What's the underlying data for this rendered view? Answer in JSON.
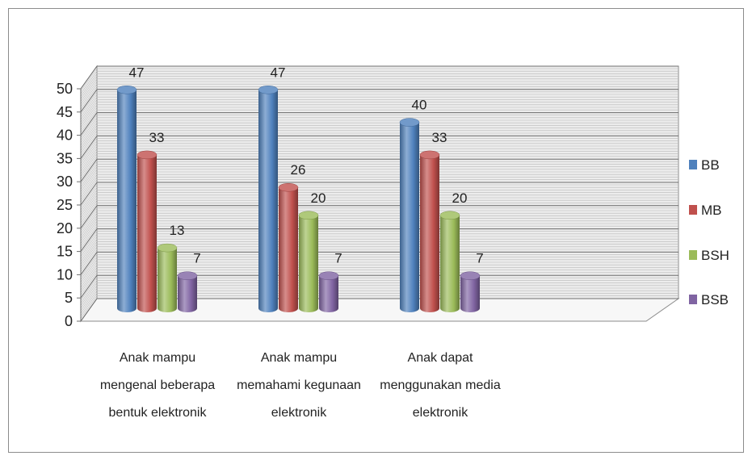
{
  "chart_data": {
    "type": "bar",
    "categories": [
      [
        "Anak mampu",
        "mengenal beberapa",
        "bentuk elektronik"
      ],
      [
        "Anak mampu",
        "memahami kegunaan",
        "elektronik"
      ],
      [
        "Anak dapat",
        "menggunakan media",
        "elektronik"
      ]
    ],
    "series": [
      {
        "name": "BB",
        "values": [
          47,
          47,
          40
        ],
        "color": "#4f81bd"
      },
      {
        "name": "MB",
        "values": [
          33,
          26,
          33
        ],
        "color": "#c0504d"
      },
      {
        "name": "BSH",
        "values": [
          13,
          20,
          20
        ],
        "color": "#9bbb59"
      },
      {
        "name": "BSB",
        "values": [
          7,
          7,
          7
        ],
        "color": "#8064a2"
      }
    ],
    "ylim": [
      0,
      50
    ],
    "yticks": [
      "0",
      "5",
      "10",
      "15",
      "20",
      "25",
      "30",
      "35",
      "40",
      "45",
      "50"
    ],
    "grid": true,
    "legend": "right",
    "title": "",
    "xlabel": "",
    "ylabel": ""
  }
}
